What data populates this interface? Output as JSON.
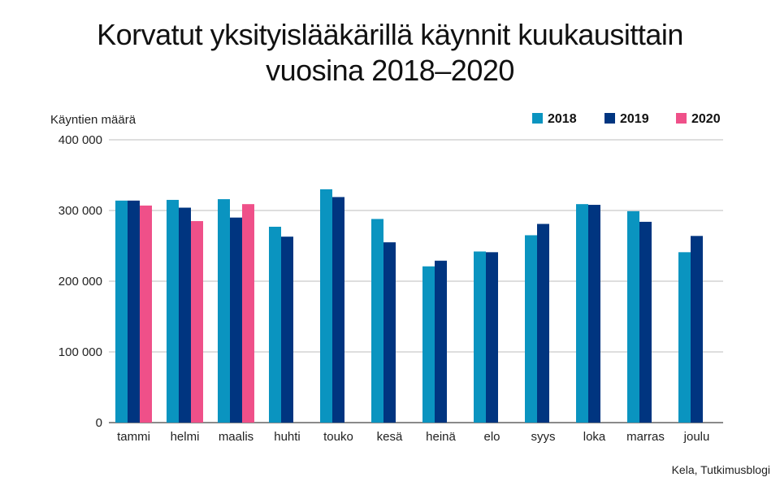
{
  "chart_data": {
    "type": "bar",
    "title": "Korvatut yksityislääkärillä käynnit kuukausittain",
    "title_line2": "vuosina 2018–2020",
    "ylabel": "Käyntien määrä",
    "ylim": [
      0,
      400000
    ],
    "yticks": [
      0,
      100000,
      200000,
      300000,
      400000
    ],
    "ytick_labels": [
      "0",
      "100 000",
      "200 000",
      "300 000",
      "400 000"
    ],
    "grid": true,
    "legend_position": "top-right",
    "categories": [
      "tammi",
      "helmi",
      "maalis",
      "huhti",
      "touko",
      "kesä",
      "heinä",
      "elo",
      "syys",
      "loka",
      "marras",
      "joulu"
    ],
    "series": [
      {
        "name": "2018",
        "color": "#0a94c0",
        "values": [
          314000,
          315000,
          316000,
          277000,
          330000,
          288000,
          221000,
          242000,
          265000,
          309000,
          299000,
          241000
        ]
      },
      {
        "name": "2019",
        "color": "#003580",
        "values": [
          314000,
          304000,
          290000,
          263000,
          319000,
          255000,
          229000,
          241000,
          281000,
          308000,
          284000,
          264000
        ]
      },
      {
        "name": "2020",
        "color": "#ef5089",
        "values": [
          307000,
          285000,
          309000,
          null,
          null,
          null,
          null,
          null,
          null,
          null,
          null,
          null
        ]
      }
    ],
    "source": "Kela, Tutkimusblogi"
  }
}
